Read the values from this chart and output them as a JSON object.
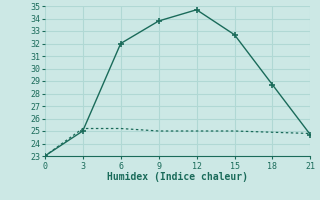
{
  "line1_x": [
    0,
    3,
    6,
    9,
    12,
    15,
    18,
    21
  ],
  "line1_y": [
    23,
    25,
    32,
    33.8,
    34.7,
    32.7,
    28.7,
    24.7
  ],
  "line2_x": [
    0,
    3,
    6,
    9,
    12,
    15,
    18,
    21
  ],
  "line2_y": [
    23,
    25.2,
    25.2,
    25.0,
    25.0,
    25.0,
    24.9,
    24.8
  ],
  "line_color": "#1a6b5a",
  "bg_color": "#cce8e5",
  "grid_color": "#b0d8d4",
  "xlabel": "Humidex (Indice chaleur)",
  "xlim": [
    0,
    21
  ],
  "ylim": [
    23,
    35
  ],
  "xticks": [
    0,
    3,
    6,
    9,
    12,
    15,
    18,
    21
  ],
  "yticks": [
    23,
    24,
    25,
    26,
    27,
    28,
    29,
    30,
    31,
    32,
    33,
    34,
    35
  ]
}
